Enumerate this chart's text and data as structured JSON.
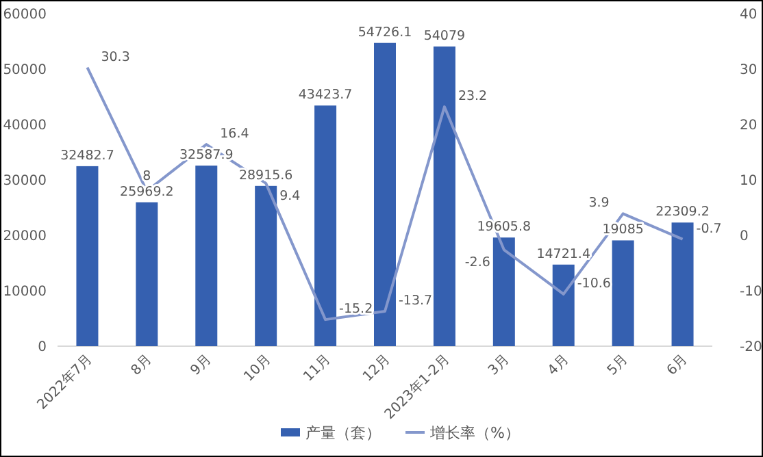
{
  "chart_data": {
    "type": "bar",
    "categories": [
      "2022年7月",
      "8月",
      "9月",
      "10月",
      "11月",
      "12月",
      "2023年1-2月",
      "3月",
      "4月",
      "5月",
      "6月"
    ],
    "series": [
      {
        "name": "产量（套）",
        "type": "bar",
        "color": "#3560b0",
        "values": [
          32482.7,
          25969.2,
          32587.9,
          28915.6,
          43423.7,
          54726.1,
          54079,
          19605.8,
          14721.4,
          19085,
          22309.2
        ]
      },
      {
        "name": "增长率（%）",
        "type": "line",
        "axis": "y2",
        "color": "#8497cc",
        "values": [
          30.3,
          8,
          16.4,
          9.4,
          -15.2,
          -13.7,
          23.2,
          -2.6,
          -10.6,
          3.9,
          -0.7
        ]
      }
    ],
    "ylim": [
      0,
      60000
    ],
    "yticks": [
      0,
      10000,
      20000,
      30000,
      40000,
      50000,
      60000
    ],
    "y2lim": [
      -20,
      40
    ],
    "y2ticks": [
      -20,
      -10,
      0,
      10,
      20,
      30,
      40
    ],
    "data_labels": true,
    "legend": "bottom",
    "grid": false,
    "marker": "none"
  }
}
